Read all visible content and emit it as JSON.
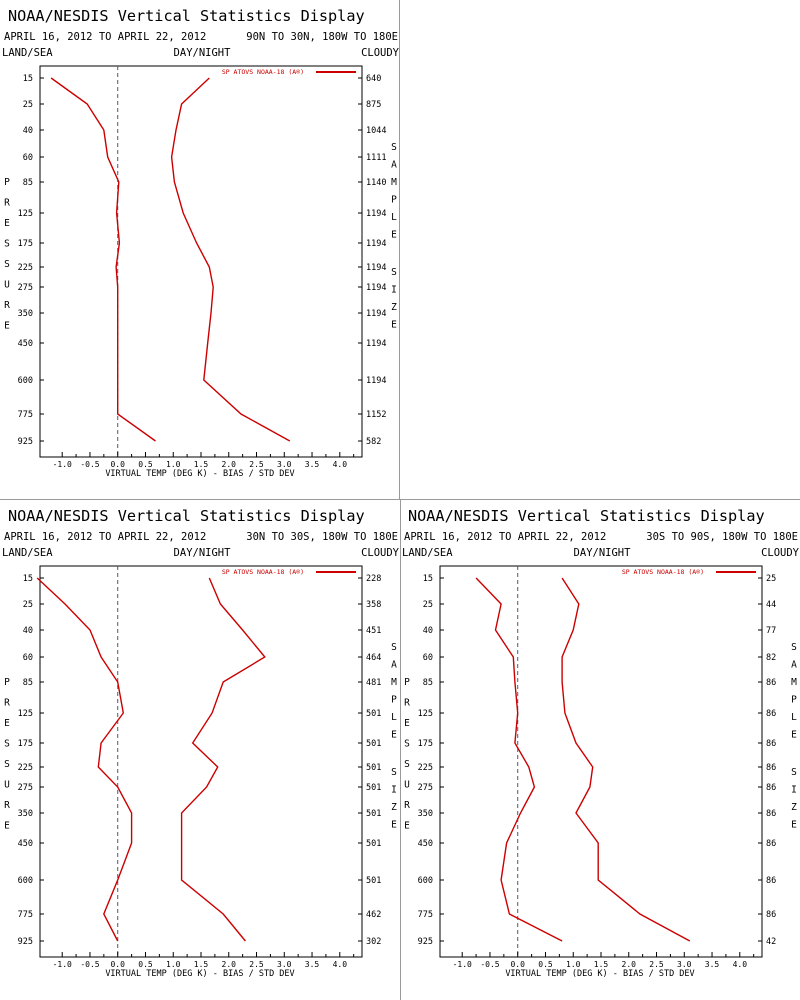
{
  "panels": [
    {
      "title": "NOAA/NESDIS Vertical Statistics Display",
      "date_range": "APRIL 16, 2012 TO APRIL 22, 2012",
      "region": "90N TO 30N, 180W TO 180E",
      "land_sea": "LAND/SEA",
      "day_night": "DAY/NIGHT",
      "cloudy": "CLOUDY",
      "left_axis_label": "PRESSURE",
      "right_axis_label": "SAMPLE SIZE",
      "xlabel": "VIRTUAL TEMP (DEG K) - BIAS / STD DEV",
      "legend": "SP ATOVS NOAA-18 (A®)",
      "pressure_levels": [
        "15",
        "25",
        "40",
        "60",
        "85",
        "125",
        "175",
        "225",
        "275",
        "350",
        "450",
        "600",
        "775",
        "925"
      ],
      "sample_sizes": [
        "640",
        "875",
        "1044",
        "1111",
        "1140",
        "1194",
        "1194",
        "1194",
        "1194",
        "1194",
        "1194",
        "1194",
        "1152",
        "582"
      ],
      "x_ticks": [
        "-1.0",
        "-0.5",
        "0.0",
        "0.5",
        "1.0",
        "1.5",
        "2.0",
        "2.5",
        "3.0",
        "3.5",
        "4.0"
      ],
      "bias": [
        -1.2,
        -0.55,
        -0.25,
        -0.18,
        0.02,
        -0.02,
        0.03,
        -0.03,
        0.0,
        0.0,
        0.0,
        0.0,
        0.0,
        0.68
      ],
      "std_dev": [
        1.65,
        1.15,
        1.05,
        0.97,
        1.02,
        1.18,
        1.42,
        1.65,
        1.72,
        1.68,
        1.62,
        1.55,
        2.22,
        3.1
      ]
    },
    {
      "title": "NOAA/NESDIS Vertical Statistics Display",
      "date_range": "APRIL 16, 2012 TO APRIL 22, 2012",
      "region": "30N TO 30S, 180W TO 180E",
      "land_sea": "LAND/SEA",
      "day_night": "DAY/NIGHT",
      "cloudy": "CLOUDY",
      "left_axis_label": "PRESSURE",
      "right_axis_label": "SAMPLE SIZE",
      "xlabel": "VIRTUAL TEMP (DEG K) - BIAS / STD DEV",
      "legend": "SP ATOVS NOAA-18 (A®)",
      "pressure_levels": [
        "15",
        "25",
        "40",
        "60",
        "85",
        "125",
        "175",
        "225",
        "275",
        "350",
        "450",
        "600",
        "775",
        "925"
      ],
      "sample_sizes": [
        "228",
        "358",
        "451",
        "464",
        "481",
        "501",
        "501",
        "501",
        "501",
        "501",
        "501",
        "501",
        "462",
        "302"
      ],
      "x_ticks": [
        "-1.0",
        "-0.5",
        "0.0",
        "0.5",
        "1.0",
        "1.5",
        "2.0",
        "2.5",
        "3.0",
        "3.5",
        "4.0"
      ],
      "bias": [
        -1.45,
        -0.95,
        -0.5,
        -0.3,
        0.0,
        0.1,
        -0.3,
        -0.35,
        0.0,
        0.25,
        0.25,
        0.0,
        -0.25,
        0.0
      ],
      "std_dev": [
        1.65,
        1.85,
        2.25,
        2.65,
        1.9,
        1.7,
        1.35,
        1.8,
        1.6,
        1.15,
        1.15,
        1.15,
        1.9,
        2.3
      ]
    },
    {
      "title": "NOAA/NESDIS Vertical Statistics Display",
      "date_range": "APRIL 16, 2012 TO APRIL 22, 2012",
      "region": "30S TO 90S, 180W TO 180E",
      "land_sea": "LAND/SEA",
      "day_night": "DAY/NIGHT",
      "cloudy": "CLOUDY",
      "left_axis_label": "PRESSURE",
      "right_axis_label": "SAMPLE SIZE",
      "xlabel": "VIRTUAL TEMP (DEG K) - BIAS / STD DEV",
      "legend": "SP ATOVS NOAA-18 (A®)",
      "pressure_levels": [
        "15",
        "25",
        "40",
        "60",
        "85",
        "125",
        "175",
        "225",
        "275",
        "350",
        "450",
        "600",
        "775",
        "925"
      ],
      "sample_sizes": [
        "25",
        "44",
        "77",
        "82",
        "86",
        "86",
        "86",
        "86",
        "86",
        "86",
        "86",
        "86",
        "86",
        "42"
      ],
      "x_ticks": [
        "-1.0",
        "-0.5",
        "0.0",
        "0.5",
        "1.0",
        "1.5",
        "2.0",
        "2.5",
        "3.0",
        "3.5",
        "4.0"
      ],
      "bias": [
        -0.75,
        -0.3,
        -0.4,
        -0.08,
        -0.05,
        0.0,
        -0.05,
        0.2,
        0.3,
        0.05,
        -0.2,
        -0.3,
        -0.15,
        0.8
      ],
      "std_dev": [
        0.8,
        1.1,
        1.0,
        0.8,
        0.8,
        0.85,
        1.05,
        1.35,
        1.3,
        1.05,
        1.45,
        1.45,
        2.2,
        3.1
      ]
    }
  ],
  "colors": {
    "series": "#cc0000",
    "axis": "#000000",
    "zero_line": "#555577"
  },
  "chart_data": [
    {
      "type": "line",
      "title": "NOAA/NESDIS Vertical Statistics Display",
      "subtitle": "APRIL 16, 2012 TO APRIL 22, 2012  90N TO 30N, 180W TO 180E",
      "xlabel": "VIRTUAL TEMP (DEG K) - BIAS / STD DEV",
      "ylabel": "PRESSURE",
      "y2label": "SAMPLE SIZE",
      "y": [
        15,
        25,
        40,
        60,
        85,
        125,
        175,
        225,
        275,
        350,
        450,
        600,
        775,
        925
      ],
      "xlim": [
        -1.4,
        4.4
      ],
      "series": [
        {
          "name": "SP ATOVS NOAA-18 (A®)",
          "values": [
            -1.2,
            -0.55,
            -0.25,
            -0.18,
            0.02,
            -0.02,
            0.03,
            -0.03,
            0.0,
            0.0,
            0.0,
            0.0,
            0.0,
            0.68
          ]
        },
        {
          "values": [
            1.65,
            1.15,
            1.05,
            0.97,
            1.02,
            1.18,
            1.42,
            1.65,
            1.72,
            1.68,
            1.62,
            1.55,
            2.22,
            3.1
          ]
        }
      ]
    },
    {
      "type": "line",
      "title": "NOAA/NESDIS Vertical Statistics Display",
      "subtitle": "APRIL 16, 2012 TO APRIL 22, 2012  30N TO 30S, 180W TO 180E",
      "xlabel": "VIRTUAL TEMP (DEG K) - BIAS / STD DEV",
      "ylabel": "PRESSURE",
      "y2label": "SAMPLE SIZE",
      "y": [
        15,
        25,
        40,
        60,
        85,
        125,
        175,
        225,
        275,
        350,
        450,
        600,
        775,
        925
      ],
      "xlim": [
        -1.4,
        4.4
      ],
      "series": [
        {
          "name": "SP ATOVS NOAA-18 (A®)",
          "values": [
            -1.45,
            -0.95,
            -0.5,
            -0.3,
            0.0,
            0.1,
            -0.3,
            -0.35,
            0.0,
            0.25,
            0.25,
            0.0,
            -0.25,
            0.0
          ]
        },
        {
          "values": [
            1.65,
            1.85,
            2.25,
            2.65,
            1.9,
            1.7,
            1.35,
            1.8,
            1.6,
            1.15,
            1.15,
            1.15,
            1.9,
            2.3
          ]
        }
      ]
    },
    {
      "type": "line",
      "title": "NOAA/NESDIS Vertical Statistics Display",
      "subtitle": "APRIL 16, 2012 TO APRIL 22, 2012  30S TO 90S, 180W TO 180E",
      "xlabel": "VIRTUAL TEMP (DEG K) - BIAS / STD DEV",
      "ylabel": "PRESSURE",
      "y2label": "SAMPLE SIZE",
      "y": [
        15,
        25,
        40,
        60,
        85,
        125,
        175,
        225,
        275,
        350,
        450,
        600,
        775,
        925
      ],
      "xlim": [
        -1.4,
        4.4
      ],
      "series": [
        {
          "name": "SP ATOVS NOAA-18 (A®)",
          "values": [
            -0.75,
            -0.3,
            -0.4,
            -0.08,
            -0.05,
            0.0,
            -0.05,
            0.2,
            0.3,
            0.05,
            -0.2,
            -0.3,
            -0.15,
            0.8
          ]
        },
        {
          "values": [
            0.8,
            1.1,
            1.0,
            0.8,
            0.8,
            0.85,
            1.05,
            1.35,
            1.3,
            1.05,
            1.45,
            1.45,
            2.2,
            3.1
          ]
        }
      ]
    }
  ]
}
